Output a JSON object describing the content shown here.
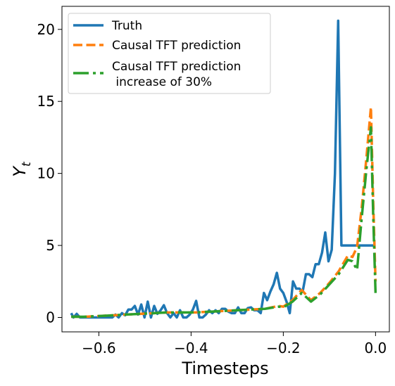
{
  "chart_data": {
    "type": "line",
    "xlabel": "Timesteps",
    "ylabel": "Y",
    "ylabel_subscript": "t",
    "xlim": [
      -0.68,
      0.03
    ],
    "ylim": [
      -1.0,
      21.6
    ],
    "xticks": [
      -0.6,
      -0.4,
      -0.2,
      0.0
    ],
    "xtick_labels": [
      "−0.6",
      "−0.4",
      "−0.2",
      "0.0"
    ],
    "yticks": [
      0,
      5,
      10,
      15,
      20
    ],
    "ytick_labels": [
      "0",
      "5",
      "10",
      "15",
      "20"
    ],
    "legend_position": "top-left",
    "grid": false,
    "series": [
      {
        "name": "Truth",
        "color": "#1f77b4",
        "style": "solid",
        "x": [
          -0.66,
          -0.655,
          -0.648,
          -0.641,
          -0.634,
          -0.627,
          -0.62,
          -0.613,
          -0.606,
          -0.599,
          -0.592,
          -0.585,
          -0.578,
          -0.571,
          -0.564,
          -0.557,
          -0.55,
          -0.543,
          -0.536,
          -0.529,
          -0.522,
          -0.515,
          -0.508,
          -0.501,
          -0.494,
          -0.487,
          -0.48,
          -0.473,
          -0.466,
          -0.459,
          -0.452,
          -0.445,
          -0.438,
          -0.431,
          -0.424,
          -0.417,
          -0.41,
          -0.403,
          -0.396,
          -0.389,
          -0.382,
          -0.375,
          -0.368,
          -0.361,
          -0.354,
          -0.347,
          -0.34,
          -0.333,
          -0.326,
          -0.319,
          -0.312,
          -0.305,
          -0.298,
          -0.291,
          -0.284,
          -0.277,
          -0.27,
          -0.263,
          -0.256,
          -0.249,
          -0.242,
          -0.235,
          -0.228,
          -0.221,
          -0.214,
          -0.207,
          -0.2,
          -0.193,
          -0.186,
          -0.179,
          -0.172,
          -0.165,
          -0.158,
          -0.151,
          -0.144,
          -0.137,
          -0.13,
          -0.123,
          -0.116,
          -0.109,
          -0.102,
          -0.095,
          -0.088,
          -0.081,
          -0.074,
          -0.067,
          -0.06,
          -0.053,
          -0.046,
          -0.039,
          -0.032,
          -0.025,
          -0.018,
          -0.011,
          -0.004,
          0.0
        ],
        "y": [
          0.3,
          0.0,
          0.25,
          0.0,
          0.0,
          0.0,
          0.0,
          0.0,
          0.0,
          0.0,
          0.0,
          0.0,
          0.0,
          0.0,
          0.2,
          0.0,
          0.3,
          0.15,
          0.55,
          0.55,
          0.8,
          0.2,
          0.9,
          0.0,
          1.1,
          0.0,
          0.8,
          0.25,
          0.5,
          0.85,
          0.3,
          0.0,
          0.3,
          0.0,
          0.5,
          0.0,
          0.0,
          0.2,
          0.55,
          1.15,
          0.0,
          0.0,
          0.2,
          0.5,
          0.3,
          0.5,
          0.3,
          0.6,
          0.6,
          0.4,
          0.3,
          0.3,
          0.7,
          0.3,
          0.3,
          0.65,
          0.7,
          0.5,
          0.5,
          0.3,
          1.7,
          1.2,
          1.8,
          2.3,
          3.1,
          2.0,
          1.7,
          1.1,
          0.3,
          2.5,
          2.0,
          2.0,
          1.8,
          3.0,
          3.0,
          2.8,
          3.7,
          3.7,
          4.5,
          5.9,
          3.9,
          4.7,
          10.0,
          20.6,
          5.0,
          5.0,
          5.0,
          5.0,
          5.0,
          5.0,
          5.0,
          5.0,
          5.0,
          5.0,
          5.0,
          5.0
        ]
      },
      {
        "name": "Causal TFT prediction",
        "color": "#ff7f0e",
        "style": "dashed",
        "x": [
          -0.66,
          -0.63,
          -0.6,
          -0.57,
          -0.54,
          -0.51,
          -0.48,
          -0.45,
          -0.42,
          -0.39,
          -0.36,
          -0.33,
          -0.3,
          -0.27,
          -0.24,
          -0.21,
          -0.2,
          -0.18,
          -0.16,
          -0.14,
          -0.12,
          -0.1,
          -0.08,
          -0.06,
          -0.05,
          -0.04,
          -0.03,
          -0.02,
          -0.01,
          -0.005,
          0.0
        ],
        "y": [
          0.05,
          0.05,
          0.1,
          0.15,
          0.2,
          0.25,
          0.3,
          0.35,
          0.35,
          0.35,
          0.4,
          0.45,
          0.5,
          0.55,
          0.6,
          0.8,
          0.75,
          1.2,
          1.9,
          1.2,
          1.7,
          2.4,
          3.2,
          4.3,
          4.2,
          4.9,
          7.6,
          11.0,
          14.6,
          8.0,
          2.5
        ]
      },
      {
        "name": "Causal TFT prediction\n increase of 30%",
        "color": "#2ca02c",
        "style": "dashdot",
        "x": [
          -0.66,
          -0.63,
          -0.6,
          -0.57,
          -0.54,
          -0.51,
          -0.48,
          -0.45,
          -0.42,
          -0.39,
          -0.36,
          -0.33,
          -0.3,
          -0.27,
          -0.24,
          -0.21,
          -0.2,
          -0.18,
          -0.16,
          -0.14,
          -0.12,
          -0.1,
          -0.08,
          -0.06,
          -0.05,
          -0.04,
          -0.03,
          -0.02,
          -0.01,
          -0.005,
          0.0
        ],
        "y": [
          0.05,
          0.05,
          0.1,
          0.15,
          0.2,
          0.25,
          0.3,
          0.35,
          0.35,
          0.35,
          0.4,
          0.45,
          0.5,
          0.55,
          0.6,
          0.75,
          0.7,
          1.1,
          1.7,
          1.1,
          1.6,
          2.3,
          3.0,
          4.0,
          3.9,
          3.3,
          6.9,
          10.2,
          13.2,
          7.0,
          1.7
        ]
      }
    ],
    "legend_labels": [
      "Truth",
      "Causal TFT prediction",
      "Causal TFT prediction",
      " increase of 30%"
    ]
  }
}
